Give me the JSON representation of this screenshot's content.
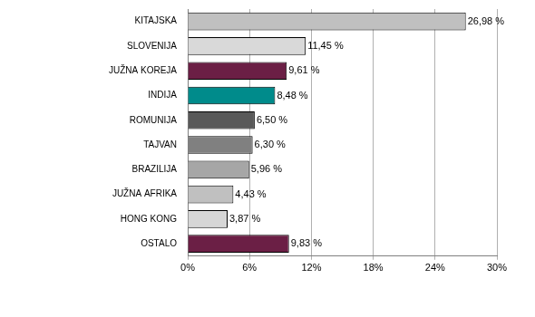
{
  "chart_data": {
    "type": "bar",
    "orientation": "horizontal",
    "categories": [
      "KITAJSKA",
      "SLOVENIJA",
      "JUŽNA KOREJA",
      "INDIJA",
      "ROMUNIJA",
      "TAJVAN",
      "BRAZILIJA",
      "JUŽNA AFRIKA",
      "HONG KONG",
      "OSTALO"
    ],
    "values": [
      26.98,
      11.45,
      9.61,
      8.48,
      6.5,
      6.3,
      5.96,
      4.43,
      3.87,
      9.83
    ],
    "value_labels": [
      "26,98 %",
      "11,45 %",
      "9,61 %",
      "8,48 %",
      "6,50 %",
      "6,30 %",
      "5,96 %",
      "4,43 %",
      "3,87 %",
      "9,83 %"
    ],
    "colors": [
      "#c0c0c0",
      "#d9d9d9",
      "#6b1f45",
      "#008b8b",
      "#595959",
      "#808080",
      "#a6a6a6",
      "#c0c0c0",
      "#d6d6d6",
      "#6b1f45"
    ],
    "xlim": [
      0,
      30
    ],
    "xticks": [
      {
        "value": 0,
        "label": "0%"
      },
      {
        "value": 6,
        "label": "6%"
      },
      {
        "value": 12,
        "label": "12%"
      },
      {
        "value": 18,
        "label": "18%"
      },
      {
        "value": 24,
        "label": "24%"
      },
      {
        "value": 30,
        "label": "30%"
      }
    ],
    "grid": true,
    "data_labels": true
  }
}
